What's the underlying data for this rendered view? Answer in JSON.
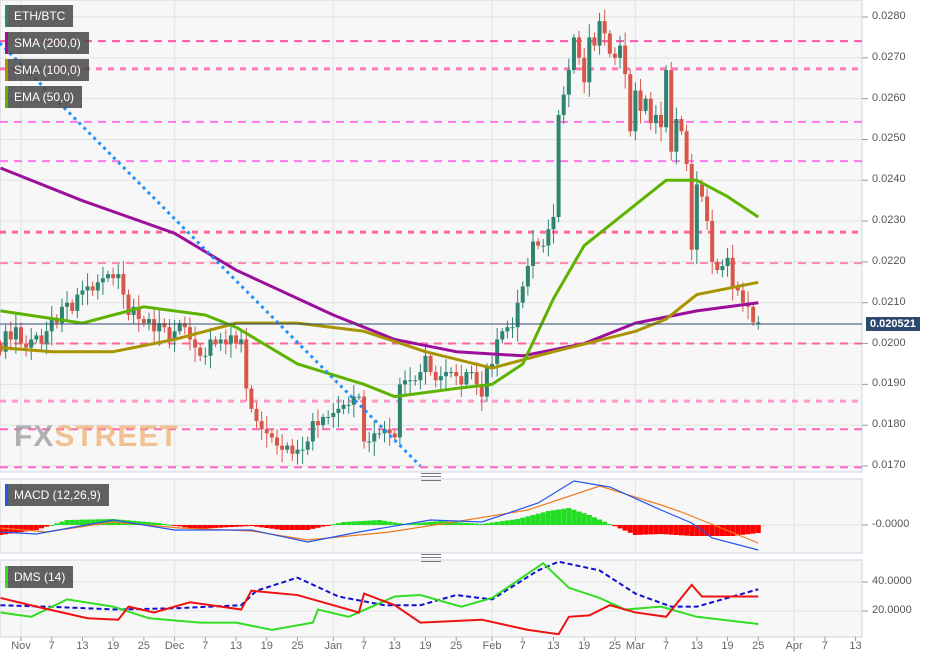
{
  "legends": {
    "main": "ETH/BTC",
    "sma200": "SMA (200,0)",
    "sma100": "SMA (100,0)",
    "ema50": "EMA (50,0)",
    "macd": "MACD (12,26,9)",
    "dms": "DMS (14)"
  },
  "watermark": {
    "part1": "FX",
    "part2": "STREET"
  },
  "colors": {
    "up": "#2e8470",
    "down": "#d9574a",
    "sma200": "#9b0f9b",
    "sma100": "#a89300",
    "ema50": "#5cb300",
    "trend": "#1e90ff",
    "macd": "#2255ee",
    "signal": "#f07a20",
    "hist_up": "#22dd22",
    "hist_down": "#ff0000",
    "adx": "#1010d0",
    "plus_di": "#33dd22",
    "minus_di": "#ee1111",
    "price_tag": "#2d4a6e"
  },
  "price_tag": "0.020521",
  "chart_data": {
    "type": "candlestick",
    "symbol": "ETH/BTC",
    "ylim": [
      0.0167,
      0.0285
    ],
    "y_ticks": [
      "0.0280",
      "0.0270",
      "0.0260",
      "0.0250",
      "0.0240",
      "0.0230",
      "0.0220",
      "0.0210",
      "0.0200",
      "0.0190",
      "0.0180",
      "0.0170"
    ],
    "x_ticks": [
      {
        "label": "Nov",
        "date": "Nov 1"
      },
      {
        "label": "7",
        "date": "Nov 7"
      },
      {
        "label": "13",
        "date": "Nov 13"
      },
      {
        "label": "19",
        "date": "Nov 19"
      },
      {
        "label": "25",
        "date": "Nov 25"
      },
      {
        "label": "Dec",
        "date": "Dec 1"
      },
      {
        "label": "7",
        "date": "Dec 7"
      },
      {
        "label": "13",
        "date": "Dec 13"
      },
      {
        "label": "19",
        "date": "Dec 19"
      },
      {
        "label": "25",
        "date": "Dec 25"
      },
      {
        "label": "Jan",
        "date": "Jan 1"
      },
      {
        "label": "7",
        "date": "Jan 7"
      },
      {
        "label": "13",
        "date": "Jan 13"
      },
      {
        "label": "19",
        "date": "Jan 19"
      },
      {
        "label": "25",
        "date": "Jan 25"
      },
      {
        "label": "Feb",
        "date": "Feb 1"
      },
      {
        "label": "7",
        "date": "Feb 7"
      },
      {
        "label": "13",
        "date": "Feb 13"
      },
      {
        "label": "19",
        "date": "Feb 19"
      },
      {
        "label": "25",
        "date": "Feb 25"
      },
      {
        "label": "Mar",
        "date": "Mar 1"
      },
      {
        "label": "7",
        "date": "Mar 7"
      },
      {
        "label": "13",
        "date": "Mar 13"
      },
      {
        "label": "19",
        "date": "Mar 19"
      },
      {
        "label": "25",
        "date": "Mar 25"
      },
      {
        "label": "Apr",
        "date": "Apr 1"
      },
      {
        "label": "7",
        "date": "Apr 7"
      },
      {
        "label": "13",
        "date": "Apr 13"
      }
    ],
    "first_date": "Oct 28",
    "closes": [
      0.0198,
      0.0203,
      0.0201,
      0.0204,
      0.02,
      0.0199,
      0.0201,
      0.0202,
      0.02,
      0.0203,
      0.0206,
      0.0205,
      0.0209,
      0.021,
      0.0208,
      0.0212,
      0.0213,
      0.0214,
      0.0213,
      0.0215,
      0.0216,
      0.0217,
      0.0216,
      0.0217,
      0.0212,
      0.0207,
      0.0209,
      0.0206,
      0.0205,
      0.0206,
      0.0203,
      0.0205,
      0.0204,
      0.0201,
      0.0203,
      0.0205,
      0.0204,
      0.0201,
      0.0199,
      0.0197,
      0.0197,
      0.0201,
      0.02,
      0.0201,
      0.02,
      0.0202,
      0.02,
      0.0201,
      0.0189,
      0.0184,
      0.0181,
      0.0179,
      0.0178,
      0.0177,
      0.0175,
      0.0174,
      0.0175,
      0.0173,
      0.0174,
      0.0174,
      0.0176,
      0.0181,
      0.018,
      0.0182,
      0.0182,
      0.0183,
      0.0184,
      0.0185,
      0.0185,
      0.0187,
      0.0187,
      0.0176,
      0.0176,
      0.0178,
      0.0178,
      0.0179,
      0.0178,
      0.0177,
      0.019,
      0.0191,
      0.0191,
      0.0191,
      0.0193,
      0.0197,
      0.0193,
      0.0191,
      0.0192,
      0.0193,
      0.0193,
      0.0192,
      0.019,
      0.0193,
      0.0193,
      0.019,
      0.0187,
      0.0194,
      0.0195,
      0.0201,
      0.0203,
      0.0204,
      0.0204,
      0.021,
      0.0214,
      0.0219,
      0.0225,
      0.0224,
      0.0224,
      0.0228,
      0.0231,
      0.0256,
      0.0261,
      0.0267,
      0.0275,
      0.027,
      0.0264,
      0.0275,
      0.0273,
      0.0279,
      0.0276,
      0.0271,
      0.027,
      0.0273,
      0.0266,
      0.0252,
      0.0262,
      0.0257,
      0.026,
      0.0254,
      0.0256,
      0.0253,
      0.0267,
      0.0247,
      0.0255,
      0.0252,
      0.0244,
      0.0223,
      0.0239,
      0.0236,
      0.023,
      0.022,
      0.0218,
      0.0219,
      0.0221,
      0.0214,
      0.0213,
      0.021,
      0.0209,
      0.02052,
      0.020521
    ],
    "horizontal_levels": [
      0.02741,
      0.02673,
      0.02543,
      0.02447,
      0.02273,
      0.02197,
      0.02,
      0.01859,
      0.0179,
      0.01697
    ],
    "trendline": [
      {
        "date": "Oct 24",
        "value": 0.02785
      },
      {
        "date": "Jan 18",
        "value": 0.017
      }
    ],
    "series": [
      {
        "name": "SMA (200,0)",
        "points": [
          [
            "Oct 28",
            0.0243
          ],
          [
            "Nov 13",
            0.0235
          ],
          [
            "Dec 1",
            0.0227
          ],
          [
            "Dec 13",
            0.0218
          ],
          [
            "Jan 1",
            0.0207
          ],
          [
            "Jan 13",
            0.0201
          ],
          [
            "Jan 25",
            0.0198
          ],
          [
            "Feb 7",
            0.0197
          ],
          [
            "Feb 19",
            0.02
          ],
          [
            "Mar 1",
            0.0205
          ],
          [
            "Mar 13",
            0.0208
          ],
          [
            "Mar 25",
            0.021
          ]
        ]
      },
      {
        "name": "SMA (100,0)",
        "points": [
          [
            "Oct 28",
            0.0199
          ],
          [
            "Nov 7",
            0.0198
          ],
          [
            "Nov 19",
            0.0198
          ],
          [
            "Dec 1",
            0.0201
          ],
          [
            "Dec 13",
            0.0205
          ],
          [
            "Dec 25",
            0.0205
          ],
          [
            "Jan 7",
            0.0203
          ],
          [
            "Jan 19",
            0.0198
          ],
          [
            "Feb 1",
            0.0194
          ],
          [
            "Feb 13",
            0.0198
          ],
          [
            "Mar 1",
            0.0203
          ],
          [
            "Mar 7",
            0.0206
          ],
          [
            "Mar 13",
            0.0212
          ],
          [
            "Mar 25",
            0.0215
          ]
        ]
      },
      {
        "name": "EMA (50,0)",
        "points": [
          [
            "Oct 28",
            0.0208
          ],
          [
            "Nov 13",
            0.0205
          ],
          [
            "Nov 25",
            0.0209
          ],
          [
            "Dec 7",
            0.0207
          ],
          [
            "Dec 13",
            0.0204
          ],
          [
            "Dec 25",
            0.0195
          ],
          [
            "Jan 7",
            0.019
          ],
          [
            "Jan 13",
            0.0187
          ],
          [
            "Jan 25",
            0.0189
          ],
          [
            "Feb 1",
            0.019
          ],
          [
            "Feb 7",
            0.0195
          ],
          [
            "Feb 13",
            0.0211
          ],
          [
            "Feb 19",
            0.0224
          ],
          [
            "Mar 1",
            0.0234
          ],
          [
            "Mar 7",
            0.024
          ],
          [
            "Mar 13",
            0.024
          ],
          [
            "Mar 19",
            0.0236
          ],
          [
            "Mar 25",
            0.0231
          ]
        ]
      }
    ],
    "macd": {
      "y_ticks": [
        "-0.0000"
      ],
      "macd_line": [
        [
          "Oct 28",
          -0.00014
        ],
        [
          "Nov 4",
          -0.00018
        ],
        [
          "Nov 19",
          0.0001
        ],
        [
          "Dec 1",
          -0.0001
        ],
        [
          "Dec 16",
          -0.0001
        ],
        [
          "Dec 27",
          -0.00034
        ],
        [
          "Jan 6",
          -0.00014
        ],
        [
          "Jan 20",
          0.0001
        ],
        [
          "Jan 30",
          6e-05
        ],
        [
          "Feb 10",
          0.00044
        ],
        [
          "Feb 17",
          0.00088
        ],
        [
          "Feb 24",
          0.00076
        ],
        [
          "Mar 6",
          0.0003
        ],
        [
          "Mar 12",
          4e-05
        ],
        [
          "Mar 16",
          -0.00026
        ],
        [
          "Mar 25",
          -0.0005
        ]
      ],
      "signal_line": [
        [
          "Oct 28",
          -6e-05
        ],
        [
          "Nov 6",
          -0.00014
        ],
        [
          "Nov 19",
          6e-05
        ],
        [
          "Dec 2",
          -6e-05
        ],
        [
          "Dec 16",
          -0.00012
        ],
        [
          "Dec 27",
          -0.0003
        ],
        [
          "Jan 12",
          -0.00014
        ],
        [
          "Jan 27",
          0.0001
        ],
        [
          "Feb 8",
          0.0003
        ],
        [
          "Feb 22",
          0.00078
        ],
        [
          "Mar 6",
          0.0004
        ],
        [
          "Mar 10",
          0.00026
        ],
        [
          "Mar 25",
          -0.00036
        ]
      ],
      "histogram": [
        [
          "Oct 28",
          -0.0002
        ],
        [
          "Nov 4",
          -0.0001
        ],
        [
          "Nov 10",
          0.0001
        ],
        [
          "Nov 19",
          0.00012
        ],
        [
          "Nov 28",
          4e-05
        ],
        [
          "Dec 5",
          -8e-05
        ],
        [
          "Dec 16",
          -2e-05
        ],
        [
          "Dec 22",
          -0.0001
        ],
        [
          "Dec 27",
          -0.0001
        ],
        [
          "Jan 3",
          6e-05
        ],
        [
          "Jan 10",
          0.0001
        ],
        [
          "Jan 15",
          2e-05
        ],
        [
          "Jan 22",
          8e-05
        ],
        [
          "Jan 30",
          2e-05
        ],
        [
          "Feb 6",
          0.00012
        ],
        [
          "Feb 12",
          0.00028
        ],
        [
          "Feb 16",
          0.00034
        ],
        [
          "Feb 20",
          0.0002
        ],
        [
          "Feb 24",
          2e-05
        ],
        [
          "Mar 1",
          -0.0002
        ],
        [
          "Mar 6",
          -0.00018
        ],
        [
          "Mar 12",
          -0.00022
        ],
        [
          "Mar 20",
          -0.00022
        ],
        [
          "Mar 25",
          -0.00016
        ]
      ]
    },
    "dms": {
      "y_ticks": [
        "40.0000",
        "20.0000"
      ],
      "adx": [
        [
          "Oct 28",
          24
        ],
        [
          "Nov 6",
          23
        ],
        [
          "Nov 20",
          21
        ],
        [
          "Dec 2",
          22
        ],
        [
          "Dec 14",
          24
        ],
        [
          "Dec 17",
          34
        ],
        [
          "Dec 25",
          43
        ],
        [
          "Jan 2",
          30
        ],
        [
          "Jan 11",
          24
        ],
        [
          "Jan 18",
          24
        ],
        [
          "Jan 25",
          31
        ],
        [
          "Feb 1",
          28
        ],
        [
          "Feb 10",
          48
        ],
        [
          "Feb 14",
          54
        ],
        [
          "Feb 22",
          48
        ],
        [
          "Mar 1",
          32
        ],
        [
          "Mar 8",
          23
        ],
        [
          "Mar 13",
          23
        ],
        [
          "Mar 25",
          35
        ]
      ],
      "plus_di": [
        [
          "Oct 28",
          19
        ],
        [
          "Nov 3",
          16
        ],
        [
          "Nov 10",
          28
        ],
        [
          "Nov 19",
          23
        ],
        [
          "Nov 26",
          15
        ],
        [
          "Dec 6",
          12
        ],
        [
          "Dec 13",
          12
        ],
        [
          "Dec 20",
          7
        ],
        [
          "Dec 28",
          12
        ],
        [
          "Dec 29",
          21
        ],
        [
          "Jan 4",
          16
        ],
        [
          "Jan 13",
          30
        ],
        [
          "Jan 18",
          31
        ],
        [
          "Jan 26",
          23
        ],
        [
          "Feb 1",
          29
        ],
        [
          "Feb 6",
          41
        ],
        [
          "Feb 11",
          53
        ],
        [
          "Feb 16",
          36
        ],
        [
          "Feb 22",
          29
        ],
        [
          "Feb 27",
          21
        ],
        [
          "Mar 6",
          23
        ],
        [
          "Mar 13",
          16
        ],
        [
          "Mar 25",
          11
        ]
      ],
      "minus_di": [
        [
          "Oct 28",
          29
        ],
        [
          "Nov 4",
          23
        ],
        [
          "Nov 14",
          15
        ],
        [
          "Nov 20",
          14
        ],
        [
          "Nov 22",
          23
        ],
        [
          "Nov 27",
          19
        ],
        [
          "Dec 4",
          26
        ],
        [
          "Dec 14",
          21
        ],
        [
          "Dec 16",
          34
        ],
        [
          "Dec 25",
          31
        ],
        [
          "Jan 2",
          23
        ],
        [
          "Jan 6",
          19
        ],
        [
          "Jan 7",
          32
        ],
        [
          "Jan 13",
          24
        ],
        [
          "Jan 18",
          12
        ],
        [
          "Jan 30",
          14
        ],
        [
          "Feb 8",
          7
        ],
        [
          "Feb 14",
          4
        ],
        [
          "Feb 16",
          16
        ],
        [
          "Feb 20",
          17
        ],
        [
          "Feb 24",
          24
        ],
        [
          "Mar 1",
          19
        ],
        [
          "Mar 7",
          16
        ],
        [
          "Mar 12",
          38
        ],
        [
          "Mar 14",
          30
        ],
        [
          "Mar 25",
          30
        ]
      ]
    }
  }
}
